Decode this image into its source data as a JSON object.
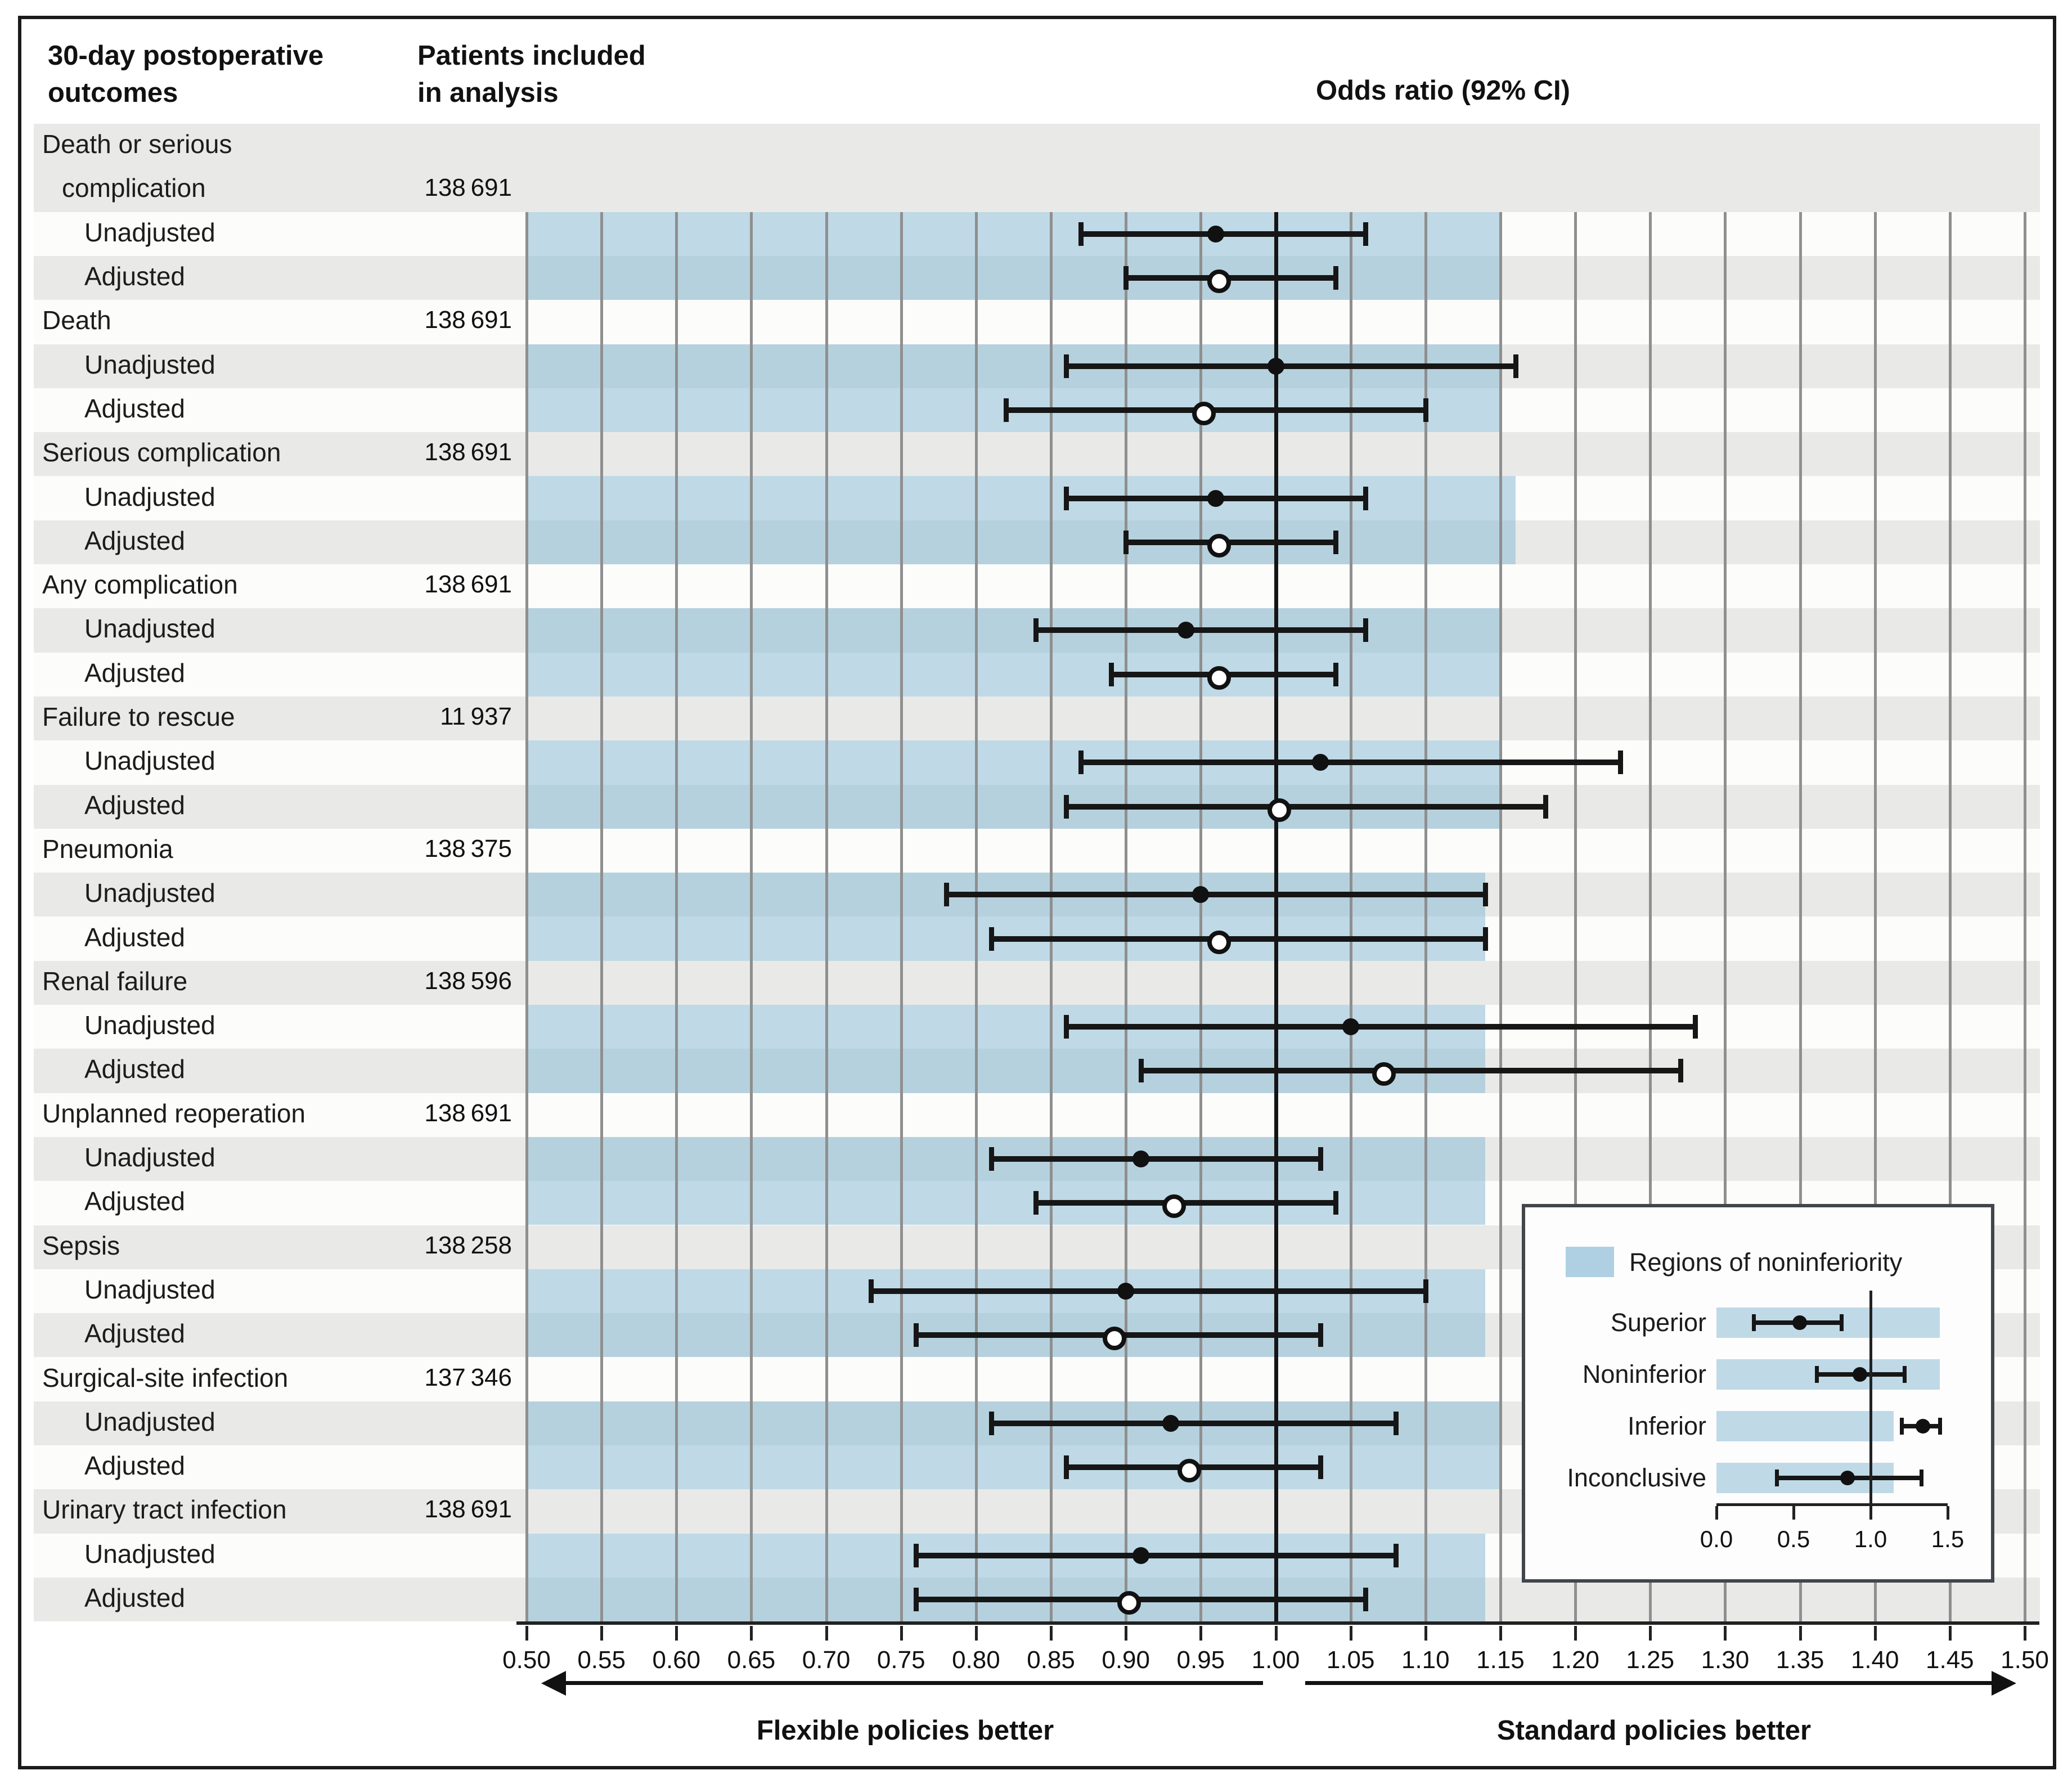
{
  "figure": {
    "col1_header_line1": "30-day postoperative",
    "col1_header_line2": "outcomes",
    "col2_header_line1": "Patients included",
    "col2_header_line2": "in analysis",
    "plot_title": "Odds ratio (92% CI)",
    "direction_left": "Flexible policies better",
    "direction_right": "Standard policies better"
  },
  "chart_data": {
    "type": "forest",
    "ci_level": "92% CI",
    "reference_line": 1.0,
    "xlim": [
      0.5,
      1.5
    ],
    "x_tick_step": 0.05,
    "x_tick_labels": [
      "0.50",
      "0.55",
      "0.60",
      "0.65",
      "0.70",
      "0.75",
      "0.80",
      "0.85",
      "0.90",
      "0.95",
      "1.00",
      "1.05",
      "1.10",
      "1.15",
      "1.20",
      "1.25",
      "1.30",
      "1.35",
      "1.40",
      "1.45",
      "1.50"
    ],
    "grid": true,
    "row_sublabels": {
      "unadjusted": "Unadjusted",
      "adjusted": "Adjusted"
    },
    "groups": [
      {
        "outcome": "Death or serious complication",
        "label_lines": [
          "Death or serious",
          "complication"
        ],
        "patients": "138 691",
        "noninferiority_upper": 1.15,
        "rows": [
          {
            "label": "Unadjusted",
            "or": 0.96,
            "lo": 0.87,
            "hi": 1.06,
            "marker": "filled"
          },
          {
            "label": "Adjusted",
            "or": 0.96,
            "lo": 0.9,
            "hi": 1.04,
            "marker": "open"
          }
        ]
      },
      {
        "outcome": "Death",
        "label_lines": [
          "Death"
        ],
        "patients": "138 691",
        "noninferiority_upper": 1.15,
        "rows": [
          {
            "label": "Unadjusted",
            "or": 1.0,
            "lo": 0.86,
            "hi": 1.16,
            "marker": "filled"
          },
          {
            "label": "Adjusted",
            "or": 0.95,
            "lo": 0.82,
            "hi": 1.1,
            "marker": "open"
          }
        ]
      },
      {
        "outcome": "Serious complication",
        "label_lines": [
          "Serious complication"
        ],
        "patients": "138 691",
        "noninferiority_upper": 1.16,
        "rows": [
          {
            "label": "Unadjusted",
            "or": 0.96,
            "lo": 0.86,
            "hi": 1.06,
            "marker": "filled"
          },
          {
            "label": "Adjusted",
            "or": 0.96,
            "lo": 0.9,
            "hi": 1.04,
            "marker": "open"
          }
        ]
      },
      {
        "outcome": "Any complication",
        "label_lines": [
          "Any complication"
        ],
        "patients": "138 691",
        "noninferiority_upper": 1.15,
        "rows": [
          {
            "label": "Unadjusted",
            "or": 0.94,
            "lo": 0.84,
            "hi": 1.06,
            "marker": "filled"
          },
          {
            "label": "Adjusted",
            "or": 0.96,
            "lo": 0.89,
            "hi": 1.04,
            "marker": "open"
          }
        ]
      },
      {
        "outcome": "Failure to rescue",
        "label_lines": [
          "Failure to rescue"
        ],
        "patients": "11 937",
        "noninferiority_upper": 1.15,
        "rows": [
          {
            "label": "Unadjusted",
            "or": 1.03,
            "lo": 0.87,
            "hi": 1.23,
            "marker": "filled"
          },
          {
            "label": "Adjusted",
            "or": 1.0,
            "lo": 0.86,
            "hi": 1.18,
            "marker": "open"
          }
        ]
      },
      {
        "outcome": "Pneumonia",
        "label_lines": [
          "Pneumonia"
        ],
        "patients": "138 375",
        "noninferiority_upper": 1.14,
        "rows": [
          {
            "label": "Unadjusted",
            "or": 0.95,
            "lo": 0.78,
            "hi": 1.14,
            "marker": "filled"
          },
          {
            "label": "Adjusted",
            "or": 0.96,
            "lo": 0.81,
            "hi": 1.14,
            "marker": "open"
          }
        ]
      },
      {
        "outcome": "Renal failure",
        "label_lines": [
          "Renal failure"
        ],
        "patients": "138 596",
        "noninferiority_upper": 1.14,
        "rows": [
          {
            "label": "Unadjusted",
            "or": 1.05,
            "lo": 0.86,
            "hi": 1.28,
            "marker": "filled"
          },
          {
            "label": "Adjusted",
            "or": 1.07,
            "lo": 0.91,
            "hi": 1.27,
            "marker": "open"
          }
        ]
      },
      {
        "outcome": "Unplanned reoperation",
        "label_lines": [
          "Unplanned reoperation"
        ],
        "patients": "138 691",
        "noninferiority_upper": 1.14,
        "rows": [
          {
            "label": "Unadjusted",
            "or": 0.91,
            "lo": 0.81,
            "hi": 1.03,
            "marker": "filled"
          },
          {
            "label": "Adjusted",
            "or": 0.93,
            "lo": 0.84,
            "hi": 1.04,
            "marker": "open"
          }
        ]
      },
      {
        "outcome": "Sepsis",
        "label_lines": [
          "Sepsis"
        ],
        "patients": "138 258",
        "noninferiority_upper": 1.14,
        "rows": [
          {
            "label": "Unadjusted",
            "or": 0.9,
            "lo": 0.73,
            "hi": 1.1,
            "marker": "filled"
          },
          {
            "label": "Adjusted",
            "or": 0.89,
            "lo": 0.76,
            "hi": 1.03,
            "marker": "open"
          }
        ]
      },
      {
        "outcome": "Surgical-site infection",
        "label_lines": [
          "Surgical-site infection"
        ],
        "patients": "137 346",
        "noninferiority_upper": 1.15,
        "rows": [
          {
            "label": "Unadjusted",
            "or": 0.93,
            "lo": 0.81,
            "hi": 1.08,
            "marker": "filled"
          },
          {
            "label": "Adjusted",
            "or": 0.94,
            "lo": 0.86,
            "hi": 1.03,
            "marker": "open"
          }
        ]
      },
      {
        "outcome": "Urinary tract infection",
        "label_lines": [
          "Urinary tract infection"
        ],
        "patients": "138 691",
        "noninferiority_upper": 1.14,
        "rows": [
          {
            "label": "Unadjusted",
            "or": 0.91,
            "lo": 0.76,
            "hi": 1.08,
            "marker": "filled"
          },
          {
            "label": "Adjusted",
            "or": 0.9,
            "lo": 0.76,
            "hi": 1.06,
            "marker": "open"
          }
        ]
      }
    ]
  },
  "legend": {
    "title": "Regions of noninferiority",
    "axis_tick_labels": [
      "0.0",
      "0.5",
      "1.0",
      "1.5"
    ],
    "axis_tick_values": [
      0.0,
      0.5,
      1.0,
      1.5
    ],
    "reference_line": 1.0,
    "rows": [
      {
        "label": "Superior",
        "region_upper": 1.45,
        "or": 0.54,
        "lo": 0.24,
        "hi": 0.81
      },
      {
        "label": "Noninferior",
        "region_upper": 1.45,
        "or": 0.93,
        "lo": 0.65,
        "hi": 1.22
      },
      {
        "label": "Inferior",
        "region_upper": 1.15,
        "or": 1.34,
        "lo": 1.2,
        "hi": 1.45
      },
      {
        "label": "Inconclusive",
        "region_upper": 1.15,
        "or": 0.85,
        "lo": 0.39,
        "hi": 1.33
      }
    ]
  },
  "colors": {
    "noninferiority_fill": "#8dbcd6",
    "stripe_gray": "#e9eae8",
    "stripe_white": "#fcfcfb",
    "gridline": "#8f8f8f",
    "reference_line": "#151515",
    "text": "#1c1c1c"
  }
}
